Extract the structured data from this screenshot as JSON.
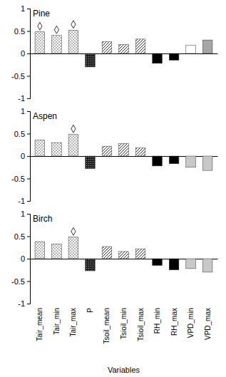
{
  "chart_data": [
    {
      "type": "bar",
      "title": "Pine",
      "categories": [
        "Tair_mean",
        "Tair_min",
        "Tair_max",
        "P",
        "Tsoil_mean",
        "Tsioil_min",
        "Tsioil_max",
        "RH_min",
        "RH_max",
        "VPD_min",
        "VPD_max"
      ],
      "values": [
        0.48,
        0.4,
        0.52,
        -0.3,
        0.26,
        0.2,
        0.32,
        -0.22,
        -0.15,
        0.18,
        0.3
      ],
      "significant": [
        true,
        true,
        true,
        false,
        false,
        false,
        false,
        false,
        false,
        false,
        false
      ],
      "colors": [
        "#d9d9d9",
        "#d9d9d9",
        "#d9d9d9",
        "#404040",
        "#bfbfbf",
        "#bfbfbf",
        "#bfbfbf",
        "#000000",
        "#000000",
        "#ffffff",
        "#a6a6a6"
      ],
      "ylim": [
        -1,
        1
      ],
      "yticks": [
        -1,
        -0.5,
        0,
        0.5,
        1
      ],
      "tick_labels": "y"
    },
    {
      "type": "bar",
      "title": "Aspen",
      "categories": [
        "Tair_mean",
        "Tair_min",
        "Tair_max",
        "P",
        "Tsoil_mean",
        "Tsioil_min",
        "Tsioil_max",
        "RH_min",
        "RH_max",
        "VPD_min",
        "VPD_max"
      ],
      "values": [
        0.36,
        0.3,
        0.48,
        -0.28,
        0.22,
        0.28,
        0.18,
        -0.22,
        -0.17,
        -0.25,
        -0.32
      ],
      "significant": [
        false,
        false,
        true,
        false,
        false,
        false,
        false,
        false,
        false,
        false,
        false
      ],
      "colors": [
        "#d9d9d9",
        "#d9d9d9",
        "#d9d9d9",
        "#404040",
        "#bfbfbf",
        "#bfbfbf",
        "#bfbfbf",
        "#000000",
        "#000000",
        "#c8c8c8",
        "#c8c8c8"
      ],
      "ylim": [
        -1,
        1
      ],
      "yticks": [
        -1,
        -0.5,
        0,
        0.5,
        1
      ],
      "tick_labels": "y"
    },
    {
      "type": "bar",
      "title": "Birch",
      "x_label": "Variables",
      "categories": [
        "Tair_mean",
        "Tair_min",
        "Tair_max",
        "P",
        "Tsoil_mean",
        "Tsioil_min",
        "Tsioil_max",
        "RH_min",
        "RH_max",
        "VPD_min",
        "VPD_max"
      ],
      "values": [
        0.38,
        0.33,
        0.48,
        -0.27,
        0.27,
        0.16,
        0.22,
        -0.15,
        -0.25,
        -0.22,
        -0.3
      ],
      "significant": [
        false,
        false,
        true,
        false,
        false,
        false,
        false,
        false,
        false,
        false,
        false
      ],
      "colors": [
        "#d9d9d9",
        "#d9d9d9",
        "#d9d9d9",
        "#404040",
        "#bfbfbf",
        "#bfbfbf",
        "#bfbfbf",
        "#000000",
        "#000000",
        "#c8c8c8",
        "#c8c8c8"
      ],
      "ylim": [
        -1,
        1
      ],
      "yticks": [
        -1,
        -0.5,
        0,
        0.5,
        1
      ]
    }
  ]
}
